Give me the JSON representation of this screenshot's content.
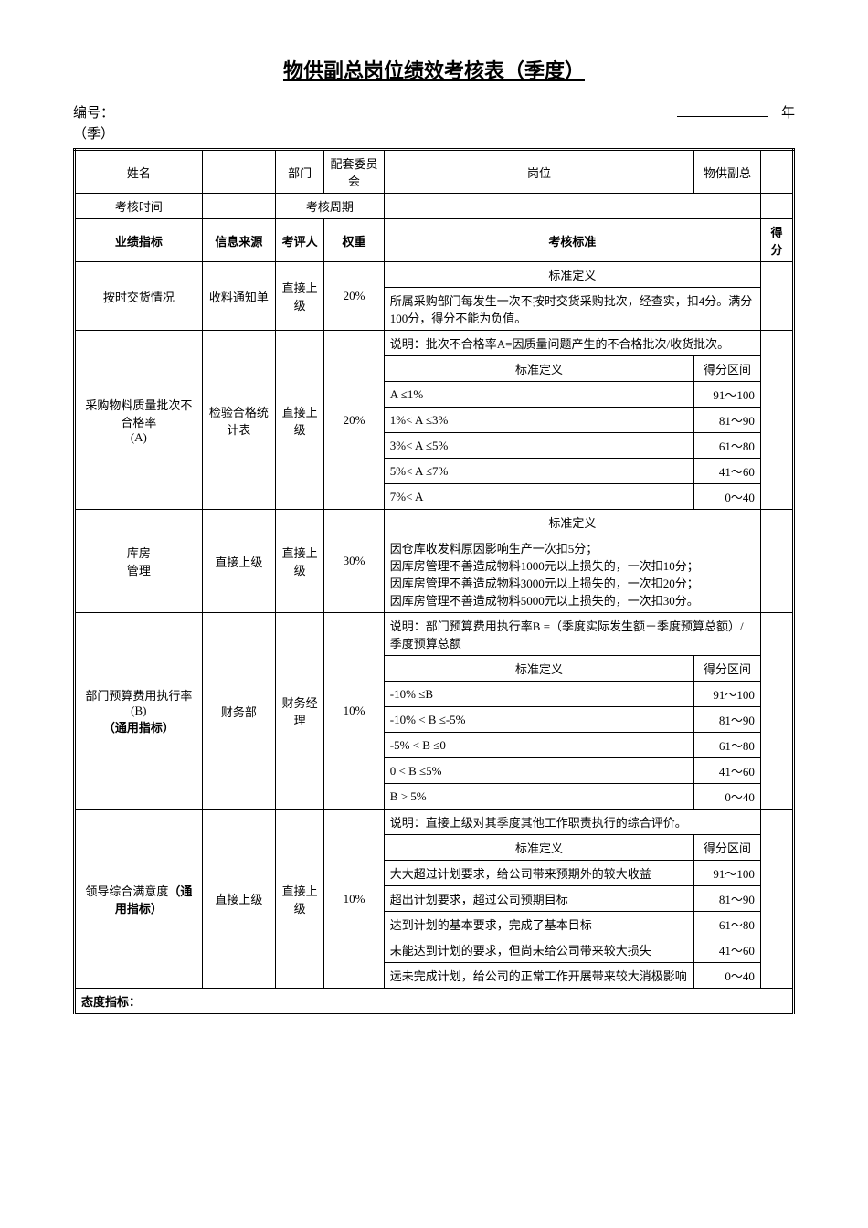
{
  "title": "物供副总岗位绩效考核表（季度）",
  "header": {
    "numberLabel": "编号：",
    "yearLabel": "年",
    "quarterLabel": "（季）"
  },
  "infoRow1": {
    "nameLabel": "姓名",
    "deptLabel": "部门",
    "deptValue": "配套委员会",
    "positionLabel": "岗位",
    "positionValue": "物供副总"
  },
  "infoRow2": {
    "assessTimeLabel": "考核时间",
    "assessPeriodLabel": "考核周期"
  },
  "tableHeader": {
    "metric": "业绩指标",
    "source": "信息来源",
    "evaluator": "考评人",
    "weight": "权重",
    "standard": "考核标准",
    "score": "得分"
  },
  "stdDefLabel": "标准定义",
  "scoreRangeLabel": "得分区间",
  "rows": [
    {
      "metric": "按时交货情况",
      "source": "收料通知单",
      "evaluator": "直接上级",
      "weight": "20%",
      "stdDef": "标准定义",
      "stdText": "所属采购部门每发生一次不按时交货采购批次，经查实，扣4分。满分100分，得分不能为负值。"
    },
    {
      "metric": "采购物料质量批次不合格率\n(A)",
      "source": "检验合格统计表",
      "evaluator": "直接上级",
      "weight": "20%",
      "explain": "说明：批次不合格率A=因质量问题产生的不合格批次/收货批次。",
      "ranges": [
        {
          "def": "A ≤1%",
          "score": "91～100"
        },
        {
          "def": "1%< A ≤3%",
          "score": "81～90"
        },
        {
          "def": "3%< A ≤5%",
          "score": "61～80"
        },
        {
          "def": "5%< A ≤7%",
          "score": "41～60"
        },
        {
          "def": "7%< A",
          "score": "0～40"
        }
      ]
    },
    {
      "metric": "库房\n管理",
      "source": "直接上级",
      "evaluator": "直接上级",
      "weight": "30%",
      "stdDef": "标准定义",
      "stdText": "因仓库收发料原因影响生产一次扣5分；\n因库房管理不善造成物料1000元以上损失的，一次扣10分；\n因库房管理不善造成物料3000元以上损失的，一次扣20分；\n因库房管理不善造成物料5000元以上损失的，一次扣30分。"
    },
    {
      "metric": "部门预算费用执行率\n(B)\n（通用指标）",
      "source": "财务部",
      "evaluator": "财务经理",
      "weight": "10%",
      "explain": "说明：部门预算费用执行率B =（季度实际发生额－季度预算总额）/ 季度预算总额",
      "ranges": [
        {
          "def": "-10% ≤B",
          "score": "91～100"
        },
        {
          "def": "-10% < B ≤-5%",
          "score": "81～90"
        },
        {
          "def": "-5% < B ≤0",
          "score": "61～80"
        },
        {
          "def": "0 < B ≤5%",
          "score": "41～60"
        },
        {
          "def": "B > 5%",
          "score": "0～40"
        }
      ]
    },
    {
      "metric": "领导综合满意度（通用指标）",
      "source": "直接上级",
      "evaluator": "直接上级",
      "weight": "10%",
      "explain": "说明：直接上级对其季度其他工作职责执行的综合评价。",
      "ranges": [
        {
          "def": "大大超过计划要求，给公司带来预期外的较大收益",
          "score": "91～100"
        },
        {
          "def": "超出计划要求，超过公司预期目标",
          "score": "81～90"
        },
        {
          "def": "达到计划的基本要求，完成了基本目标",
          "score": "61～80"
        },
        {
          "def": "未能达到计划的要求，但尚未给公司带来较大损失",
          "score": "41～60"
        },
        {
          "def": "远未完成计划，给公司的正常工作开展带来较大消极影响",
          "score": "0～40"
        }
      ]
    }
  ],
  "attitudeLabel": "态度指标："
}
